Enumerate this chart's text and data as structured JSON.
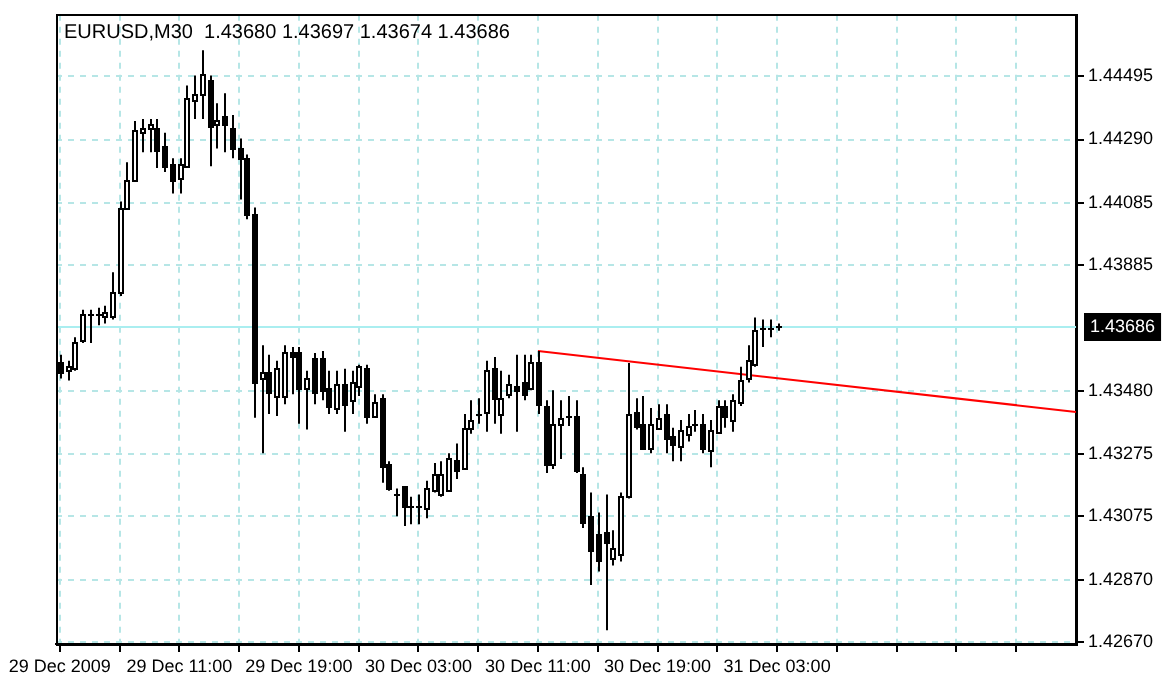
{
  "chart_data": {
    "type": "candlestick",
    "title": "EURUSD,M30  1.43680 1.43697 1.43674 1.43686",
    "color": "#000000",
    "x": [
      "2009-12-29T03:00",
      "2009-12-29T03:30",
      "2009-12-29T04:00",
      "2009-12-29T04:30",
      "2009-12-29T05:00",
      "2009-12-29T05:30",
      "2009-12-29T06:00",
      "2009-12-29T06:30",
      "2009-12-29T07:00",
      "2009-12-29T07:30",
      "2009-12-29T08:00",
      "2009-12-29T08:30",
      "2009-12-29T09:00",
      "2009-12-29T09:30",
      "2009-12-29T10:00",
      "2009-12-29T10:30",
      "2009-12-29T11:00",
      "2009-12-29T11:30",
      "2009-12-29T12:00",
      "2009-12-29T12:30",
      "2009-12-29T13:00",
      "2009-12-29T13:30",
      "2009-12-29T14:00",
      "2009-12-29T14:30",
      "2009-12-29T15:00",
      "2009-12-29T15:30",
      "2009-12-29T16:00",
      "2009-12-29T16:30",
      "2009-12-29T17:00",
      "2009-12-29T17:30",
      "2009-12-29T18:00",
      "2009-12-29T18:30",
      "2009-12-29T19:00",
      "2009-12-29T19:30",
      "2009-12-29T20:00",
      "2009-12-29T20:30",
      "2009-12-29T21:00",
      "2009-12-29T21:30",
      "2009-12-29T22:00",
      "2009-12-29T22:30",
      "2009-12-29T23:00",
      "2009-12-29T23:30",
      "2009-12-30T00:00",
      "2009-12-30T00:30",
      "2009-12-30T01:00",
      "2009-12-30T01:30",
      "2009-12-30T02:00",
      "2009-12-30T02:30",
      "2009-12-30T03:00",
      "2009-12-30T03:30",
      "2009-12-30T04:00",
      "2009-12-30T04:30",
      "2009-12-30T05:00",
      "2009-12-30T05:30",
      "2009-12-30T06:00",
      "2009-12-30T06:30",
      "2009-12-30T07:00",
      "2009-12-30T07:30",
      "2009-12-30T08:00",
      "2009-12-30T08:30",
      "2009-12-30T09:00",
      "2009-12-30T09:30",
      "2009-12-30T10:00",
      "2009-12-30T10:30",
      "2009-12-30T11:00",
      "2009-12-30T11:30",
      "2009-12-30T12:00",
      "2009-12-30T12:30",
      "2009-12-30T13:00",
      "2009-12-30T13:30",
      "2009-12-30T14:00",
      "2009-12-30T14:30",
      "2009-12-30T15:00",
      "2009-12-30T15:30",
      "2009-12-30T16:00",
      "2009-12-30T16:30",
      "2009-12-30T17:00",
      "2009-12-30T17:30",
      "2009-12-30T18:00",
      "2009-12-30T18:30",
      "2009-12-30T19:00",
      "2009-12-30T19:30",
      "2009-12-30T20:00",
      "2009-12-30T20:30",
      "2009-12-30T21:00",
      "2009-12-30T21:30",
      "2009-12-30T22:00",
      "2009-12-30T22:30",
      "2009-12-30T23:00",
      "2009-12-30T23:30",
      "2009-12-31T00:00",
      "2009-12-31T00:30",
      "2009-12-31T01:00",
      "2009-12-31T01:30",
      "2009-12-31T02:00",
      "2009-12-31T02:30",
      "2009-12-31T03:00"
    ],
    "ohlc": [
      [
        1.4357,
        1.43596,
        1.4352,
        1.43539
      ],
      [
        1.43545,
        1.43577,
        1.43513,
        1.43558
      ],
      [
        1.43558,
        1.43653,
        1.43545,
        1.4364
      ],
      [
        1.43646,
        1.43741,
        1.43634,
        1.43729
      ],
      [
        1.43722,
        1.43741,
        1.43634,
        1.43729
      ],
      [
        1.43722,
        1.43748,
        1.43691,
        1.43729
      ],
      [
        1.43722,
        1.43754,
        1.43697,
        1.43735
      ],
      [
        1.43722,
        1.43862,
        1.4371,
        1.43799
      ],
      [
        1.43799,
        1.4409,
        1.43786,
        1.44071
      ],
      [
        1.44071,
        1.44217,
        1.44071,
        1.4416
      ],
      [
        1.4416,
        1.4435,
        1.44154,
        1.44318
      ],
      [
        1.44312,
        1.44356,
        1.44249,
        1.44325
      ],
      [
        1.44325,
        1.44356,
        1.44249,
        1.44337
      ],
      [
        1.44325,
        1.44356,
        1.44198,
        1.44255
      ],
      [
        1.44268,
        1.44312,
        1.44185,
        1.44204
      ],
      [
        1.44211,
        1.4423,
        1.44116,
        1.4416
      ],
      [
        1.44166,
        1.4423,
        1.44116,
        1.44211
      ],
      [
        1.44204,
        1.44464,
        1.44198,
        1.44426
      ],
      [
        1.4442,
        1.44496,
        1.44356,
        1.44439
      ],
      [
        1.44439,
        1.44578,
        1.44356,
        1.44502
      ],
      [
        1.44483,
        1.44496,
        1.44204,
        1.44337
      ],
      [
        1.44337,
        1.44407,
        1.44261,
        1.4435
      ],
      [
        1.44363,
        1.44439,
        1.44249,
        1.44337
      ],
      [
        1.44325,
        1.44369,
        1.4423,
        1.44261
      ],
      [
        1.44261,
        1.44293,
        1.44097,
        1.4423
      ],
      [
        1.4423,
        1.44242,
        1.44033,
        1.44052
      ],
      [
        1.44052,
        1.44071,
        1.43393,
        1.43513
      ],
      [
        1.4352,
        1.43627,
        1.43279,
        1.43539
      ],
      [
        1.43539,
        1.43596,
        1.43405,
        1.43475
      ],
      [
        1.43463,
        1.43577,
        1.43399,
        1.43551
      ],
      [
        1.43463,
        1.43627,
        1.43437,
        1.43602
      ],
      [
        1.43608,
        1.43621,
        1.43469,
        1.43596
      ],
      [
        1.43602,
        1.43621,
        1.43374,
        1.43488
      ],
      [
        1.43488,
        1.43545,
        1.43355,
        1.4352
      ],
      [
        1.43589,
        1.43602,
        1.43437,
        1.43482
      ],
      [
        1.43583,
        1.43608,
        1.4345,
        1.43482
      ],
      [
        1.43488,
        1.43545,
        1.43405,
        1.43431
      ],
      [
        1.43425,
        1.43545,
        1.43405,
        1.43501
      ],
      [
        1.43501,
        1.43551,
        1.43348,
        1.43437
      ],
      [
        1.4345,
        1.43545,
        1.43405,
        1.43507
      ],
      [
        1.43494,
        1.43564,
        1.43463,
        1.43558
      ],
      [
        1.43551,
        1.43564,
        1.43374,
        1.43399
      ],
      [
        1.43399,
        1.43469,
        1.43393,
        1.43444
      ],
      [
        1.43456,
        1.43469,
        1.43184,
        1.43234
      ],
      [
        1.43241,
        1.43253,
        1.43158,
        1.43165
      ],
      [
        1.43152,
        1.43165,
        1.43076,
        1.43146
      ],
      [
        1.43171,
        1.43171,
        1.43044,
        1.43108
      ],
      [
        1.43114,
        1.43139,
        1.4305,
        1.43108
      ],
      [
        1.43114,
        1.43146,
        1.4305,
        1.43108
      ],
      [
        1.43101,
        1.4319,
        1.43069,
        1.43165
      ],
      [
        1.43165,
        1.43247,
        1.43152,
        1.43215
      ],
      [
        1.43152,
        1.43253,
        1.43139,
        1.43215
      ],
      [
        1.43165,
        1.43279,
        1.43158,
        1.43266
      ],
      [
        1.4326,
        1.4331,
        1.43196,
        1.43228
      ],
      [
        1.43234,
        1.43405,
        1.43228,
        1.43361
      ],
      [
        1.43361,
        1.4345,
        1.43342,
        1.43386
      ],
      [
        1.43399,
        1.43456,
        1.43374,
        1.43405
      ],
      [
        1.43412,
        1.43577,
        1.43348,
        1.43545
      ],
      [
        1.43551,
        1.43589,
        1.43374,
        1.43456
      ],
      [
        1.43405,
        1.43545,
        1.43342,
        1.43456
      ],
      [
        1.43469,
        1.43532,
        1.43456,
        1.43501
      ],
      [
        1.43494,
        1.43596,
        1.43348,
        1.43482
      ],
      [
        1.43507,
        1.43596,
        1.4345,
        1.43469
      ],
      [
        1.43488,
        1.43596,
        1.43482,
        1.4357
      ],
      [
        1.4357,
        1.43608,
        1.43405,
        1.43437
      ],
      [
        1.43431,
        1.4345,
        1.43215,
        1.43247
      ],
      [
        1.43247,
        1.43482,
        1.43228,
        1.43374
      ],
      [
        1.43374,
        1.4345,
        1.4326,
        1.43393
      ],
      [
        1.43393,
        1.43463,
        1.43367,
        1.43399
      ],
      [
        1.43399,
        1.4345,
        1.43215,
        1.43228
      ],
      [
        1.43215,
        1.43234,
        1.43038,
        1.43063
      ],
      [
        1.43076,
        1.43152,
        1.42854,
        1.42968
      ],
      [
        1.43019,
        1.43088,
        1.42898,
        1.42936
      ],
      [
        1.43025,
        1.43146,
        1.42708,
        1.42993
      ],
      [
        1.42943,
        1.43031,
        1.42917,
        1.42974
      ],
      [
        1.42949,
        1.43152,
        1.4293,
        1.43139
      ],
      [
        1.43139,
        1.4357,
        1.43133,
        1.43405
      ],
      [
        1.43412,
        1.43456,
        1.43355,
        1.43367
      ],
      [
        1.43374,
        1.43463,
        1.43291,
        1.43298
      ],
      [
        1.43298,
        1.43425,
        1.43279,
        1.43374
      ],
      [
        1.43361,
        1.43437,
        1.43355,
        1.43393
      ],
      [
        1.43405,
        1.43437,
        1.43279,
        1.43329
      ],
      [
        1.43336,
        1.43361,
        1.43253,
        1.4331
      ],
      [
        1.43304,
        1.43386,
        1.43253,
        1.43355
      ],
      [
        1.43342,
        1.43405,
        1.43317,
        1.43367
      ],
      [
        1.43367,
        1.43418,
        1.43348,
        1.43374
      ],
      [
        1.43374,
        1.43405,
        1.43279,
        1.43298
      ],
      [
        1.43291,
        1.43386,
        1.43234,
        1.43355
      ],
      [
        1.43348,
        1.4345,
        1.43342,
        1.43431
      ],
      [
        1.43431,
        1.4345,
        1.43361,
        1.43399
      ],
      [
        1.43386,
        1.43469,
        1.43348,
        1.4345
      ],
      [
        1.43444,
        1.43558,
        1.43431,
        1.43513
      ],
      [
        1.4352,
        1.43627,
        1.43507,
        1.43577
      ],
      [
        1.4357,
        1.43716,
        1.43558,
        1.43678
      ],
      [
        1.43684,
        1.4371,
        1.43621,
        1.43684
      ],
      [
        1.43684,
        1.4371,
        1.43653,
        1.43684
      ],
      [
        1.4368,
        1.43697,
        1.43674,
        1.43686
      ]
    ],
    "series": [
      {
        "type": "line",
        "color": "#ff0000",
        "x": [
          "2009-12-30T11:00",
          "2009-12-31T23:00"
        ],
        "values": [
          1.43608,
          1.43412
        ]
      }
    ],
    "xlim": [
      "2009-12-29T02:45",
      "2009-12-31T23:00"
    ],
    "xticks": [
      {
        "value": "2009-12-29T03:00",
        "label": "29 Dec 2009"
      },
      {
        "value": "2009-12-29T07:00",
        "label": null
      },
      {
        "value": "2009-12-29T11:00",
        "label": "29 Dec 11:00"
      },
      {
        "value": "2009-12-29T15:00",
        "label": null
      },
      {
        "value": "2009-12-29T19:00",
        "label": "29 Dec 19:00"
      },
      {
        "value": "2009-12-29T23:00",
        "label": null
      },
      {
        "value": "2009-12-30T03:00",
        "label": "30 Dec 03:00"
      },
      {
        "value": "2009-12-30T07:00",
        "label": null
      },
      {
        "value": "2009-12-30T11:00",
        "label": "30 Dec 11:00"
      },
      {
        "value": "2009-12-30T15:00",
        "label": null
      },
      {
        "value": "2009-12-30T19:00",
        "label": "30 Dec 19:00"
      },
      {
        "value": "2009-12-30T23:00",
        "label": null
      },
      {
        "value": "2009-12-31T03:00",
        "label": "31 Dec 03:00"
      },
      {
        "value": "2009-12-31T07:00",
        "label": null
      },
      {
        "value": "2009-12-31T11:00",
        "label": null
      },
      {
        "value": "2009-12-31T15:00",
        "label": null
      },
      {
        "value": "2009-12-31T19:00",
        "label": null
      }
    ],
    "ylim": [
      1.42664,
      1.44692
    ],
    "yticks": [
      {
        "value": 1.4267,
        "label": "1.42670"
      },
      {
        "value": 1.4287,
        "label": "1.42870"
      },
      1.43075,
      1.43275,
      {
        "value": 1.4348,
        "label": "1.43480"
      },
      1.43885,
      1.44085,
      {
        "value": 1.4429,
        "label": "1.44290"
      },
      1.44495
    ],
    "grid": true,
    "ref_lines": [
      {
        "axis": "y",
        "value": 1.43686,
        "label": "1.43686",
        "color": "#aaeef0"
      }
    ]
  }
}
